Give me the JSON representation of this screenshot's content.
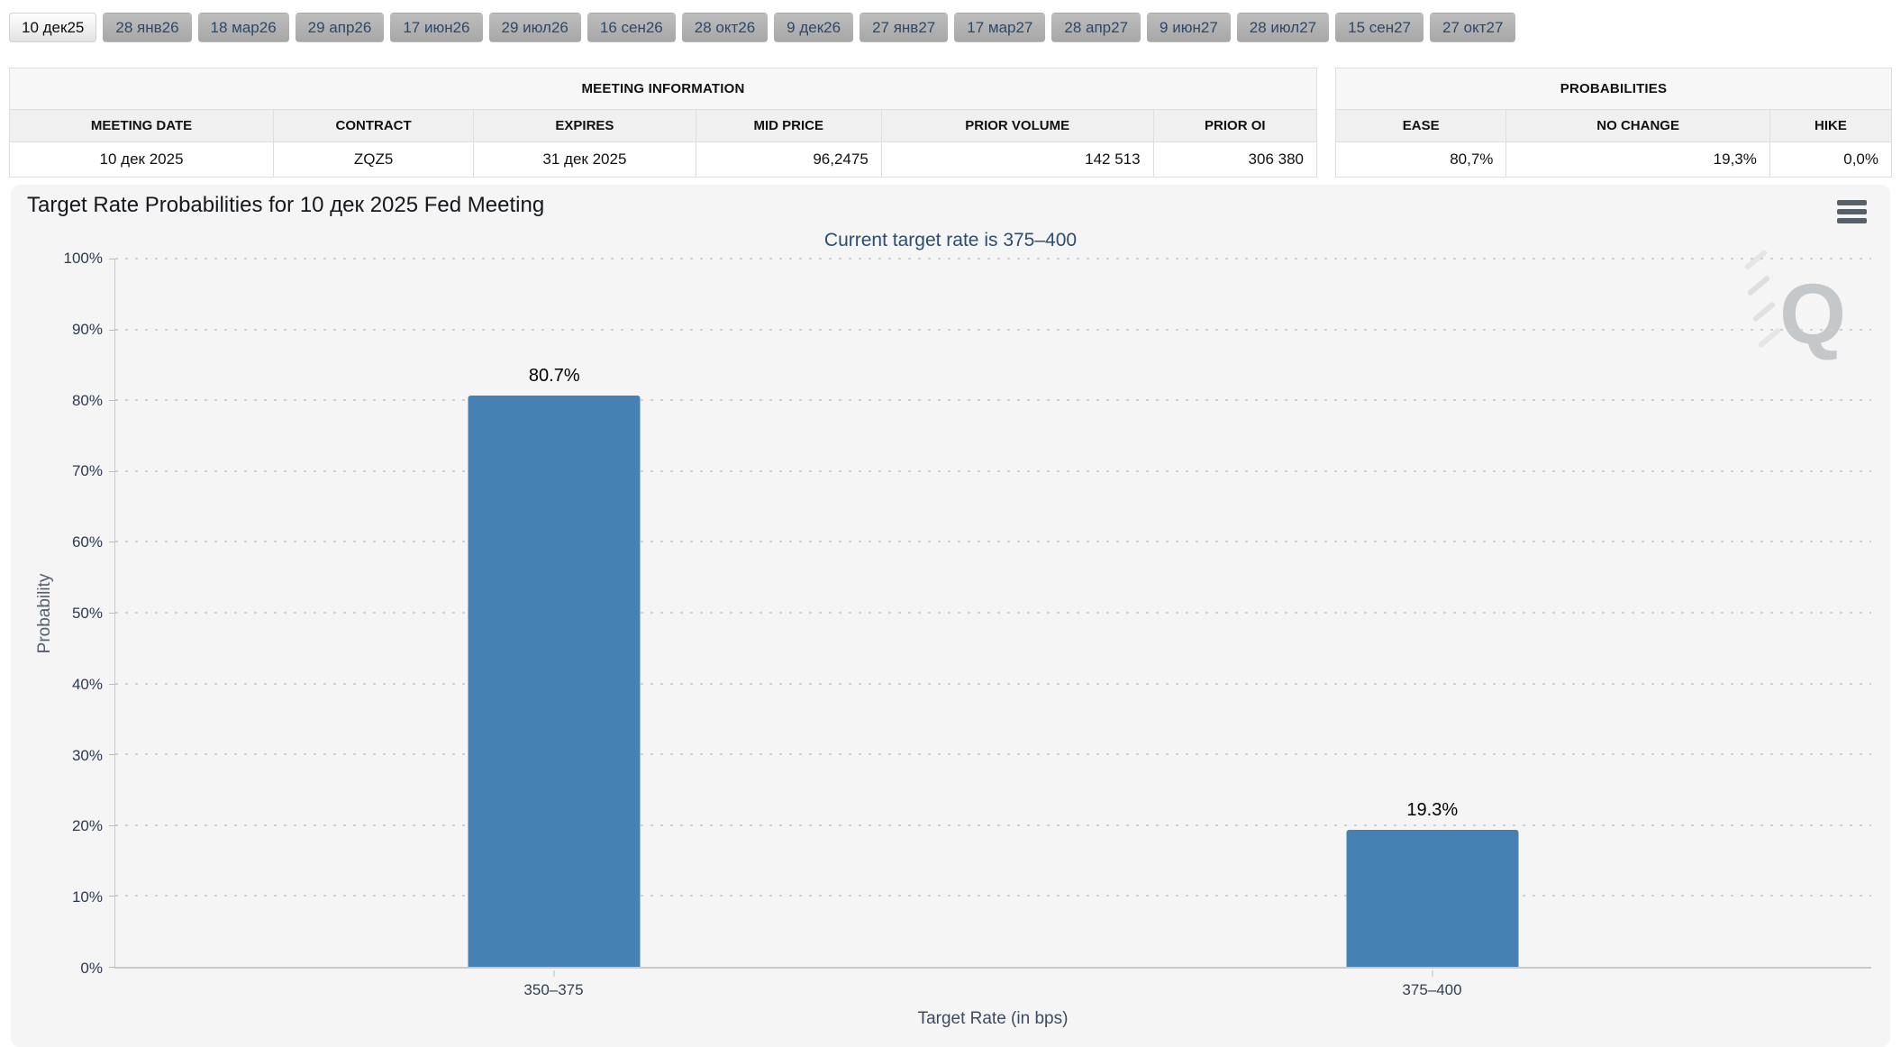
{
  "tabs": {
    "items": [
      {
        "label": "10 дек25",
        "active": true
      },
      {
        "label": "28 янв26",
        "active": false
      },
      {
        "label": "18 мар26",
        "active": false
      },
      {
        "label": "29 апр26",
        "active": false
      },
      {
        "label": "17 июн26",
        "active": false
      },
      {
        "label": "29 июл26",
        "active": false
      },
      {
        "label": "16 сен26",
        "active": false
      },
      {
        "label": "28 окт26",
        "active": false
      },
      {
        "label": "9 дек26",
        "active": false
      },
      {
        "label": "27 янв27",
        "active": false
      },
      {
        "label": "17 мар27",
        "active": false
      },
      {
        "label": "28 апр27",
        "active": false
      },
      {
        "label": "9 июн27",
        "active": false
      },
      {
        "label": "28 июл27",
        "active": false
      },
      {
        "label": "15 сен27",
        "active": false
      },
      {
        "label": "27 окт27",
        "active": false
      }
    ]
  },
  "meeting_info": {
    "title": "MEETING INFORMATION",
    "columns": [
      "MEETING DATE",
      "CONTRACT",
      "EXPIRES",
      "MID PRICE",
      "PRIOR VOLUME",
      "PRIOR OI"
    ],
    "values": [
      "10 дек 2025",
      "ZQZ5",
      "31 дек 2025",
      "96,2475",
      "142 513",
      "306 380"
    ]
  },
  "probabilities": {
    "title": "PROBABILITIES",
    "columns": [
      "EASE",
      "NO CHANGE",
      "HIKE"
    ],
    "values": [
      "80,7%",
      "19,3%",
      "0,0%"
    ]
  },
  "watermark": {
    "letter": "Q"
  },
  "chart_data": {
    "type": "bar",
    "title": "Target Rate Probabilities for 10 дек 2025 Fed Meeting",
    "subtitle": "Current target rate is 375–400",
    "categories": [
      "350–375",
      "375–400"
    ],
    "values": [
      80.7,
      19.3
    ],
    "bar_labels": [
      "80.7%",
      "19.3%"
    ],
    "xlabel": "Target Rate (in bps)",
    "ylabel": "Probability",
    "ylim": [
      0,
      100
    ],
    "ytick_step": 10,
    "ytick_suffix": "%",
    "bar_color": "#4681b3",
    "grid": "dotted-horizontal",
    "legend": "none"
  }
}
